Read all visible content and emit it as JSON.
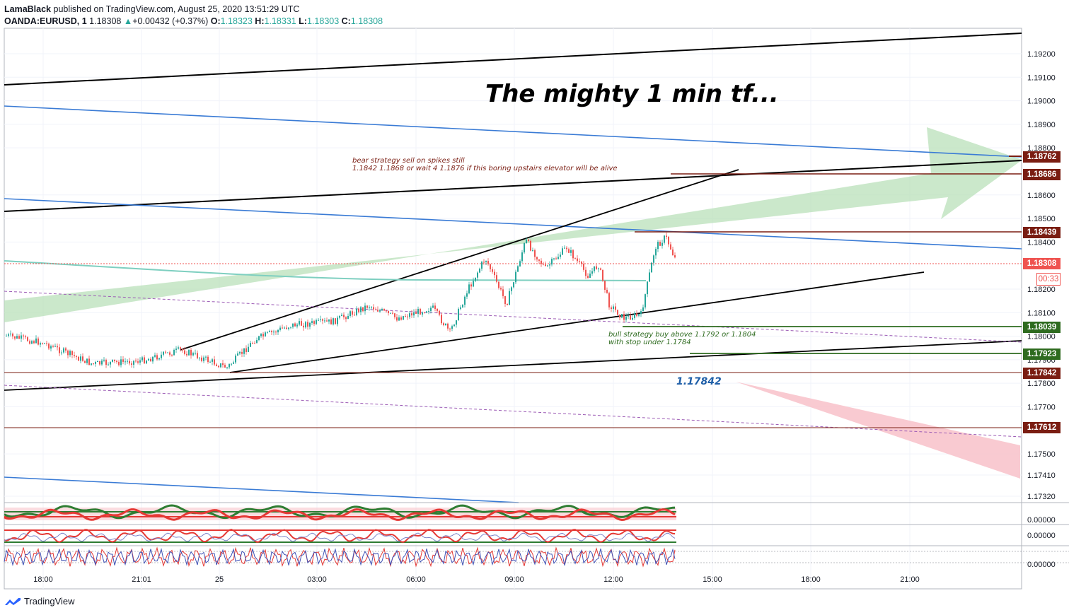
{
  "header": {
    "author": "LamaBlack",
    "published": "published on TradingView.com, August 25, 2020 13:51:29 UTC",
    "symbol": "OANDA:EURUSD, 1",
    "last": "1.18308",
    "change_arrow": "▲",
    "change": "+0.00432 (+0.37%)",
    "o_label": "O:",
    "o": "1.18323",
    "h_label": "H:",
    "h": "1.18331",
    "l_label": "L:",
    "l": "1.18303",
    "c_label": "C:",
    "c": "1.18308"
  },
  "footer": {
    "brand": "TradingView"
  },
  "colors": {
    "black_line": "#000000",
    "blue_line": "#3a7bd5",
    "teal_line": "#7ecfc0",
    "purple_dash": "#9c5bb5",
    "green_arrow": "#b9e0b9",
    "red_arrow": "#f8c4cc",
    "dark_red": "#7a1d12",
    "green_level": "#2e6b1f",
    "up_candle": "#26a69a",
    "down_candle": "#ef5350"
  },
  "chart_data": {
    "type": "candlestick",
    "title": "The mighty 1 min tf...",
    "y_ticks": [
      "1.19200",
      "1.19100",
      "1.19000",
      "1.18900",
      "1.18800",
      "1.18600",
      "1.18500",
      "1.18400",
      "1.18200",
      "1.18100",
      "1.18000",
      "1.17900",
      "1.17800",
      "1.17700",
      "1.17500",
      "1.17410",
      "1.17320"
    ],
    "y_tick_values": [
      1.192,
      1.191,
      1.19,
      1.189,
      1.188,
      1.186,
      1.185,
      1.184,
      1.182,
      1.181,
      1.18,
      1.179,
      1.178,
      1.177,
      1.175,
      1.1741,
      1.1732
    ],
    "x_ticks": [
      "18:00",
      "21:01",
      "25",
      "03:00",
      "06:00",
      "09:00",
      "12:00",
      "15:00",
      "18:00",
      "21:00"
    ],
    "price_labels": [
      {
        "text": "1.18762",
        "value": 1.18762,
        "color": "#7a1d12"
      },
      {
        "text": "1.18686",
        "value": 1.18686,
        "color": "#7a1d12"
      },
      {
        "text": "1.18439",
        "value": 1.18439,
        "color": "#7a1d12"
      },
      {
        "text": "1.18308",
        "value": 1.18308,
        "color": "#ef5350"
      },
      {
        "text": "00:33",
        "value": 1.1825,
        "color": "#ef5350",
        "outline": true
      },
      {
        "text": "1.18039",
        "value": 1.18039,
        "color": "#2e6b1f"
      },
      {
        "text": "1.17923",
        "value": 1.17923,
        "color": "#2e6b1f"
      },
      {
        "text": "1.17842",
        "value": 1.17842,
        "color": "#7a1d12"
      },
      {
        "text": "1.17612",
        "value": 1.17612,
        "color": "#7a1d12"
      }
    ],
    "annotations": {
      "bear_line1": "bear strategy sell on spikes still",
      "bear_line2": "1.1842 1.1868 or wait 4 1.1876 if this boring upstairs elevator will be alive",
      "bull_line1": "bull strategy buy above 1.1792 or 1.1804",
      "bull_line2": "with stop under 1.1784",
      "level_text": "1.17842"
    },
    "indicator_values": [
      "0.00000",
      "0.00000",
      "0.00000"
    ]
  }
}
